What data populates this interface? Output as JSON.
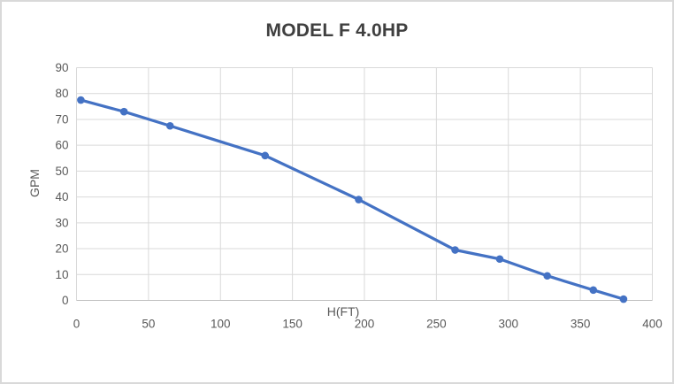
{
  "chart_data": {
    "type": "line",
    "title": "MODEL F 4.0HP",
    "xlabel": "H(FT)",
    "ylabel": "GPM",
    "series": [
      {
        "name": "MODEL F 4.0HP",
        "x": [
          3,
          33,
          65,
          131,
          196,
          263,
          294,
          327,
          359,
          380
        ],
        "y": [
          77.5,
          73,
          67.5,
          56,
          39,
          19.5,
          16,
          9.5,
          4,
          0.5
        ]
      }
    ],
    "xlim": [
      0,
      400
    ],
    "ylim": [
      0,
      90
    ],
    "x_ticks": [
      0,
      50,
      100,
      150,
      200,
      250,
      300,
      350,
      400
    ],
    "y_ticks": [
      0,
      10,
      20,
      30,
      40,
      50,
      60,
      70,
      80,
      90
    ],
    "grid": true,
    "legend": false,
    "marker": "circle",
    "colors": {
      "line": "#4472C4",
      "grid": "#D9D9D9",
      "axis_line": "#BFBFBF",
      "axis_text": "#595959",
      "title_text": "#3F3F3F",
      "background": "#FFFFFF",
      "border": "#D9D9D9"
    }
  }
}
